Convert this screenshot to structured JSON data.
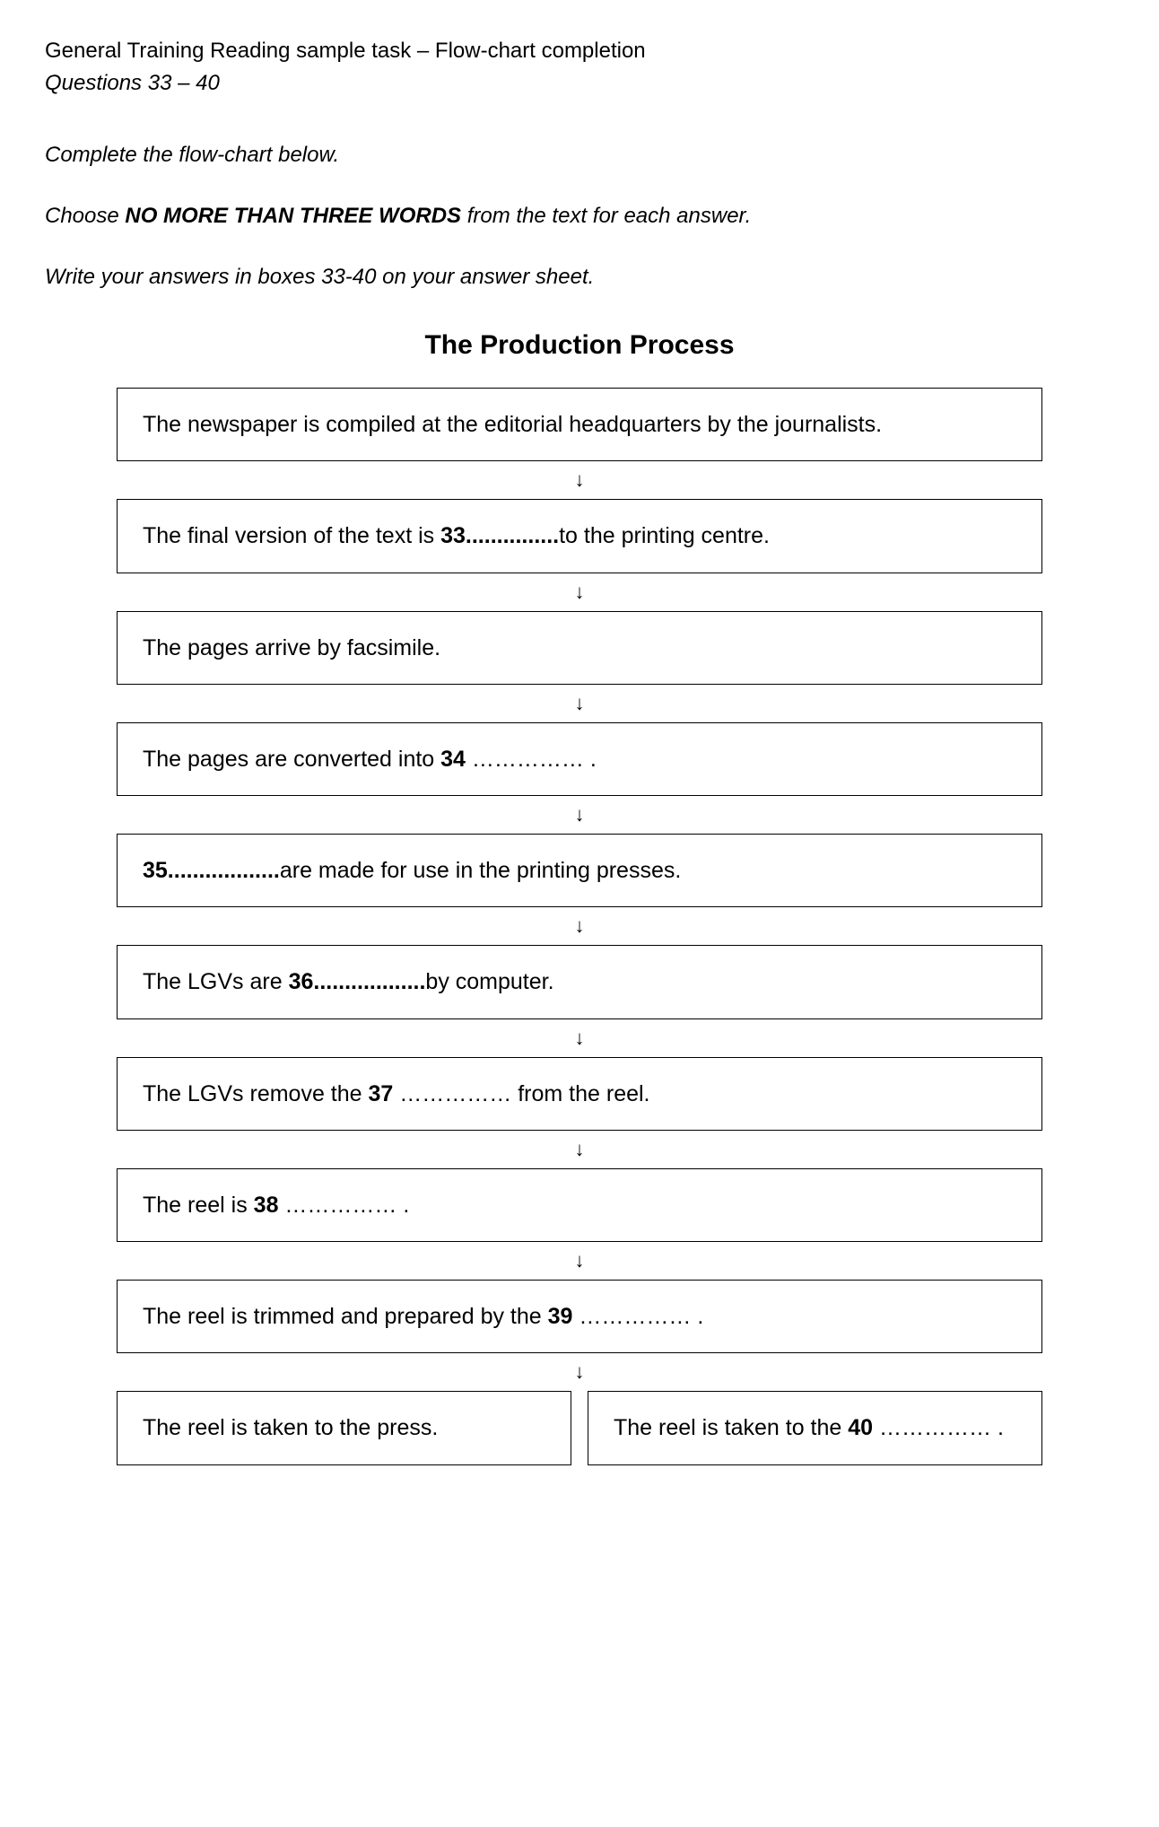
{
  "header": {
    "line1": "General Training Reading sample task – Flow-chart completion",
    "line2": "Questions 33 – 40"
  },
  "instructions": {
    "line1": "Complete the flow-chart below.",
    "line2_pre": "Choose ",
    "line2_bold": "NO MORE THAN THREE WORDS",
    "line2_post": " from the text for each answer.",
    "line3": "Write your answers in boxes 33-40 on your answer sheet."
  },
  "flowchart": {
    "title": "The Production Process",
    "arrow": "↓",
    "boxes": {
      "b1": "The newspaper is compiled at the editorial headquarters by the journalists.",
      "b2_pre": "The final version of the text is ",
      "b2_bold": "33...............",
      "b2_post": "to the printing centre.",
      "b3": "The pages arrive by facsimile.",
      "b4_pre": "The pages are converted into ",
      "b4_bold": "34",
      "b4_post": " …………… .",
      "b5_bold": "35..................",
      "b5_post": "are made for use in the printing presses.",
      "b6_pre": "The LGVs are ",
      "b6_bold": "36..................",
      "b6_post": "by computer.",
      "b7_pre": "The LGVs remove the ",
      "b7_bold": "37",
      "b7_post": " …………… from the reel.",
      "b8_pre": "The reel is ",
      "b8_bold": "38",
      "b8_post": " …………… .",
      "b9_pre": "The reel is trimmed and prepared by the ",
      "b9_bold": "39",
      "b9_post": " …………… .",
      "b10a": "The reel is taken to the press.",
      "b10b_pre": "The reel is taken to the ",
      "b10b_bold": "40",
      "b10b_post": " …………… ."
    }
  }
}
